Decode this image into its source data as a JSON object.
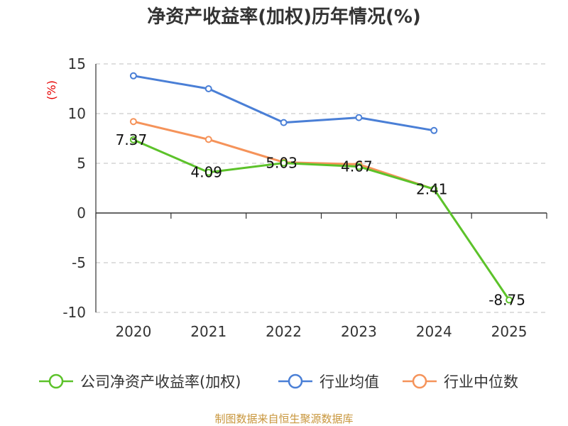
{
  "chart_data": {
    "type": "line",
    "title": "净资产收益率(加权)历年情况(%)",
    "ylabel": "(%)",
    "xlabel": "",
    "categories": [
      "2020",
      "2021",
      "2022",
      "2023",
      "2024",
      "2025"
    ],
    "ylim": [
      -10,
      15
    ],
    "yticks": [
      15,
      10,
      5,
      0,
      -5,
      -10
    ],
    "grid": true,
    "legend": "bottom",
    "series": [
      {
        "name": "公司净资产收益率(加权)",
        "color": "#5cc22a",
        "values": [
          7.37,
          4.09,
          5.03,
          4.67,
          2.41,
          -8.75
        ],
        "labels": [
          "7.37",
          "4.09",
          "5.03",
          "4.67",
          "2.41",
          "-8.75"
        ]
      },
      {
        "name": "行业均值",
        "color": "#4a7fd6",
        "values": [
          13.8,
          12.5,
          9.1,
          9.6,
          8.3,
          null
        ]
      },
      {
        "name": "行业中位数",
        "color": "#f5935a",
        "values": [
          9.2,
          7.4,
          5.1,
          4.9,
          2.4,
          null
        ]
      }
    ]
  },
  "footer": {
    "source": "制图数据来自恒生聚源数据库"
  }
}
